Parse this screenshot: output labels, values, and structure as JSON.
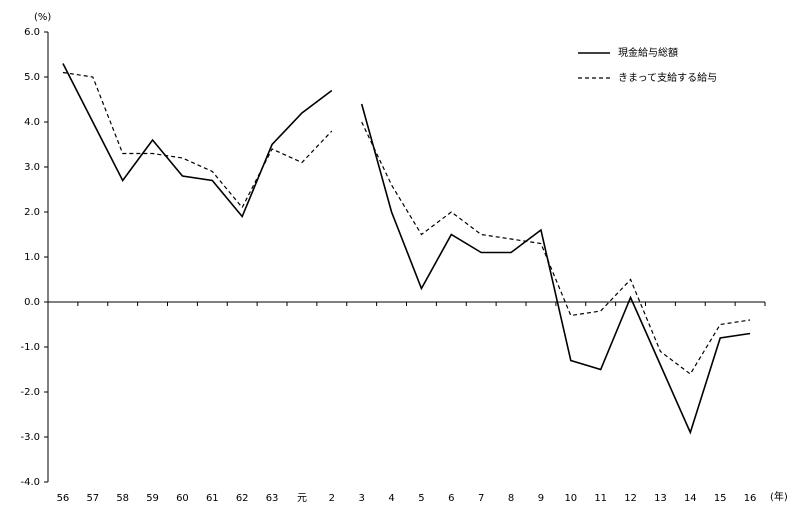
{
  "chart_data": {
    "type": "line",
    "y_unit_label": "(%)",
    "x_unit_label": "(年)",
    "categories": [
      "56",
      "57",
      "58",
      "59",
      "60",
      "61",
      "62",
      "63",
      "元",
      "2",
      "3",
      "4",
      "5",
      "6",
      "7",
      "8",
      "9",
      "10",
      "11",
      "12",
      "13",
      "14",
      "15",
      "16"
    ],
    "line_break_after_index": 9,
    "series": [
      {
        "name": "現金給与総額",
        "color": "#000000",
        "dash": false,
        "values": [
          5.3,
          4.0,
          2.7,
          3.6,
          2.8,
          2.7,
          1.9,
          3.5,
          4.2,
          4.7,
          4.4,
          2.0,
          0.3,
          1.5,
          1.1,
          1.1,
          1.6,
          -1.3,
          -1.5,
          0.1,
          -1.4,
          -2.9,
          -0.8,
          -0.7
        ]
      },
      {
        "name": "きまって支給する給与",
        "color": "#000000",
        "dash": true,
        "values": [
          5.1,
          5.0,
          3.3,
          3.3,
          3.2,
          2.9,
          2.1,
          3.4,
          3.1,
          3.8,
          4.0,
          2.6,
          1.5,
          2.0,
          1.5,
          1.4,
          1.3,
          -0.3,
          -0.2,
          0.5,
          -1.1,
          -1.6,
          -0.5,
          -0.4
        ]
      }
    ],
    "ylim": [
      -4,
      6
    ],
    "yticks": [
      {
        "value": -4,
        "label": "-4.0"
      },
      {
        "value": -3,
        "label": "-3.0"
      },
      {
        "value": -2,
        "label": "-2.0"
      },
      {
        "value": -1,
        "label": "-1.0"
      },
      {
        "value": 0,
        "label": "0.0"
      },
      {
        "value": 1,
        "label": "1.0"
      },
      {
        "value": 2,
        "label": "2.0"
      },
      {
        "value": 3,
        "label": "3.0"
      },
      {
        "value": 4,
        "label": "4.0"
      },
      {
        "value": 5,
        "label": "5.0"
      },
      {
        "value": 6,
        "label": "6.0"
      }
    ],
    "grid": false,
    "legend": "top-right"
  }
}
